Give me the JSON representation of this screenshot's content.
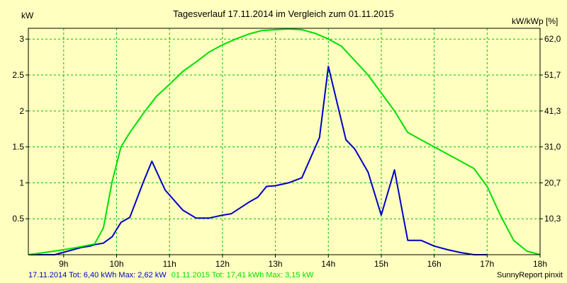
{
  "chart_data": {
    "type": "line",
    "title": "Tagesverlauf 17.11.2014 im Vergleich zum 01.11.2015",
    "ylabel_left": "kW",
    "ylabel_right": "kW/kWp [%]",
    "xlim": [
      8.333,
      18.0
    ],
    "ylim": [
      0,
      3.15
    ],
    "x_ticks": [
      9,
      10,
      11,
      12,
      13,
      14,
      15,
      16,
      17,
      18
    ],
    "x_tick_labels": [
      "9h",
      "10h",
      "11h",
      "12h",
      "13h",
      "14h",
      "15h",
      "16h",
      "17h",
      "18h"
    ],
    "y_ticks": [
      0.5,
      1,
      1.5,
      2,
      2.5,
      3
    ],
    "y_tick_labels": [
      "0.5",
      "1",
      "1.5",
      "2",
      "2.5",
      "3"
    ],
    "y2_tick_labels": [
      "10,3",
      "20,7",
      "31,0",
      "41,3",
      "51,7",
      "62,0"
    ],
    "grid": true,
    "series": [
      {
        "color": "#0000c8",
        "x": [
          8.333,
          8.833,
          9.083,
          9.333,
          9.5,
          9.583,
          9.75,
          9.917,
          10.0,
          10.083,
          10.25,
          10.5,
          10.667,
          10.917,
          11.25,
          11.5,
          11.75,
          12.0,
          12.167,
          12.5,
          12.667,
          12.833,
          13.0,
          13.25,
          13.5,
          13.833,
          14.0,
          14.333,
          14.5,
          14.75,
          15.0,
          15.25,
          15.5,
          15.75,
          16.0,
          16.25,
          16.5,
          16.75,
          17.0
        ],
        "y": [
          0,
          0,
          0.05,
          0.1,
          0.12,
          0.14,
          0.16,
          0.25,
          0.35,
          0.45,
          0.52,
          1.0,
          1.3,
          0.9,
          0.62,
          0.51,
          0.51,
          0.55,
          0.57,
          0.73,
          0.8,
          0.95,
          0.96,
          1.0,
          1.07,
          1.63,
          2.62,
          1.6,
          1.47,
          1.15,
          0.55,
          1.18,
          0.2,
          0.2,
          0.12,
          0.07,
          0.03,
          0.0,
          0
        ]
      },
      {
        "color": "#00e000",
        "x": [
          8.333,
          8.833,
          9.25,
          9.583,
          9.75,
          9.917,
          10.083,
          10.25,
          10.5,
          10.75,
          11.0,
          11.25,
          11.5,
          11.75,
          12.0,
          12.25,
          12.5,
          12.75,
          13.0,
          13.25,
          13.5,
          13.75,
          14.0,
          14.25,
          14.5,
          14.75,
          15.0,
          15.25,
          15.5,
          15.75,
          16.0,
          16.25,
          16.5,
          16.75,
          17.0,
          17.25,
          17.5,
          17.75,
          18.0
        ],
        "y": [
          0,
          0.05,
          0.1,
          0.15,
          0.37,
          1.02,
          1.5,
          1.7,
          1.96,
          2.2,
          2.37,
          2.55,
          2.68,
          2.82,
          2.92,
          3.0,
          3.07,
          3.12,
          3.13,
          3.14,
          3.13,
          3.08,
          3.0,
          2.9,
          2.7,
          2.5,
          2.25,
          2.0,
          1.7,
          1.6,
          1.5,
          1.4,
          1.3,
          1.2,
          0.95,
          0.55,
          0.2,
          0.05,
          0
        ]
      }
    ]
  },
  "footer": {
    "legend1": "17.11.2014 Tot: 6,40 kWh Max: 2,62 kW",
    "legend1_color": "#0000c8",
    "legend2": "01.11.2015 Tot: 17,41 kWh Max: 3,15 kW",
    "legend2_color": "#00e000",
    "credit": "SunnyReport pinxit"
  }
}
